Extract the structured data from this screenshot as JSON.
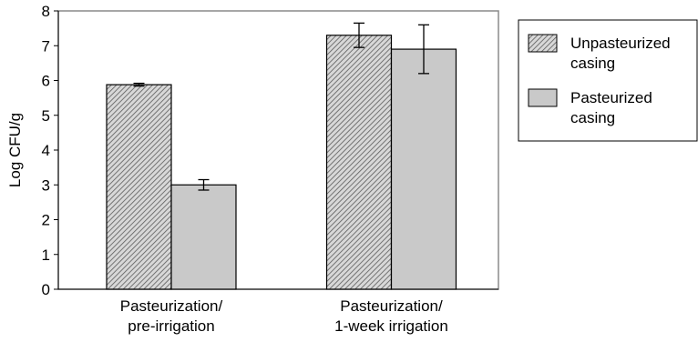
{
  "chart_data": {
    "type": "bar",
    "categories": [
      "Pasteurization/\npre-irrigation",
      "Pasteurization/\n1-week irrigation"
    ],
    "series": [
      {
        "name": "Unpasteurized casing",
        "values": [
          5.88,
          7.3
        ],
        "errors": [
          0.04,
          0.35
        ],
        "fill": "hatch"
      },
      {
        "name": "Pasteurized casing",
        "values": [
          3.0,
          6.9
        ],
        "errors": [
          0.15,
          0.7
        ],
        "fill": "#c9c9c9"
      }
    ],
    "ylabel": "Log CFU/g",
    "xlabel": "",
    "ylim": [
      0,
      8
    ],
    "yticks": [
      0,
      1,
      2,
      3,
      4,
      5,
      6,
      7,
      8
    ],
    "grid": false,
    "legend_position": "top-right"
  }
}
